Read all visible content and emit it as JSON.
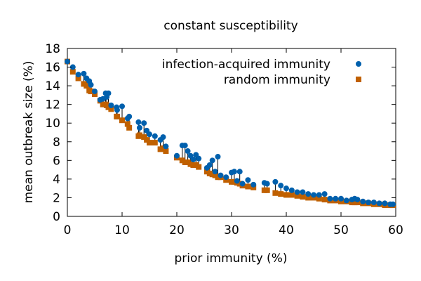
{
  "chart_data": {
    "type": "scatter",
    "title": "constant susceptibility",
    "xlabel": "prior immunity (%)",
    "ylabel": "mean outbreak size (%)",
    "xlim": [
      0,
      60
    ],
    "ylim": [
      0,
      18
    ],
    "xticks": [
      0,
      10,
      20,
      30,
      40,
      50,
      60
    ],
    "yticks": [
      0,
      2,
      4,
      6,
      8,
      10,
      12,
      14,
      16,
      18
    ],
    "legend_position": "top-right",
    "connector_lines": true,
    "series": [
      {
        "name": "infection-acquired immunity",
        "color": "#0060ad",
        "marker": "circle",
        "points": [
          [
            0,
            16.6
          ],
          [
            1,
            16.0
          ],
          [
            2,
            15.2
          ],
          [
            3,
            15.3
          ],
          [
            3.5,
            14.8
          ],
          [
            4,
            14.5
          ],
          [
            4.3,
            14.1
          ],
          [
            5,
            13.4
          ],
          [
            6,
            12.5
          ],
          [
            6.5,
            12.6
          ],
          [
            7,
            13.2
          ],
          [
            7.2,
            12.8
          ],
          [
            7.5,
            13.2
          ],
          [
            8,
            11.9
          ],
          [
            9,
            11.7
          ],
          [
            9.1,
            11.4
          ],
          [
            10,
            11.8
          ],
          [
            11,
            10.5
          ],
          [
            11.3,
            10.7
          ],
          [
            13,
            10.1
          ],
          [
            13.2,
            9.5
          ],
          [
            14,
            10.0
          ],
          [
            14.5,
            9.2
          ],
          [
            15,
            8.8
          ],
          [
            16,
            8.6
          ],
          [
            17,
            8.2
          ],
          [
            17.5,
            8.5
          ],
          [
            18,
            7.5
          ],
          [
            20,
            6.5
          ],
          [
            21,
            7.6
          ],
          [
            21.5,
            7.6
          ],
          [
            22,
            7.0
          ],
          [
            22.5,
            6.5
          ],
          [
            23,
            6.1
          ],
          [
            23.5,
            6.6
          ],
          [
            24,
            6.2
          ],
          [
            25.5,
            5.2
          ],
          [
            26,
            5.5
          ],
          [
            26.5,
            6.0
          ],
          [
            27.5,
            6.4
          ],
          [
            27,
            4.8
          ],
          [
            28,
            4.4
          ],
          [
            29,
            4.2
          ],
          [
            30,
            4.7
          ],
          [
            30.5,
            4.8
          ],
          [
            31,
            3.8
          ],
          [
            31.5,
            4.8
          ],
          [
            32,
            3.5
          ],
          [
            33,
            3.9
          ],
          [
            34,
            3.4
          ],
          [
            36,
            3.6
          ],
          [
            36.5,
            3.5
          ],
          [
            38,
            3.7
          ],
          [
            39,
            3.3
          ],
          [
            40,
            3.0
          ],
          [
            41,
            2.8
          ],
          [
            42,
            2.6
          ],
          [
            43,
            2.6
          ],
          [
            44,
            2.4
          ],
          [
            45,
            2.3
          ],
          [
            46,
            2.3
          ],
          [
            47,
            2.4
          ],
          [
            48,
            1.9
          ],
          [
            49,
            1.9
          ],
          [
            50,
            1.9
          ],
          [
            51,
            1.7
          ],
          [
            52,
            1.8
          ],
          [
            52.5,
            1.9
          ],
          [
            53,
            1.8
          ],
          [
            54,
            1.6
          ],
          [
            55,
            1.5
          ],
          [
            56,
            1.5
          ],
          [
            57,
            1.4
          ],
          [
            58,
            1.4
          ],
          [
            59,
            1.3
          ],
          [
            59.5,
            1.3
          ]
        ]
      },
      {
        "name": "random immunity",
        "color": "#c06000",
        "marker": "square",
        "points": [
          [
            0,
            16.6
          ],
          [
            1,
            15.5
          ],
          [
            2,
            14.8
          ],
          [
            3,
            14.2
          ],
          [
            3.5,
            14.0
          ],
          [
            4,
            13.5
          ],
          [
            4.3,
            13.4
          ],
          [
            5,
            13.1
          ],
          [
            6,
            12.4
          ],
          [
            6.5,
            12.0
          ],
          [
            7,
            12.0
          ],
          [
            7.2,
            11.9
          ],
          [
            7.5,
            11.7
          ],
          [
            8,
            11.5
          ],
          [
            9,
            10.7
          ],
          [
            9.1,
            10.7
          ],
          [
            10,
            10.3
          ],
          [
            11,
            9.9
          ],
          [
            11.3,
            9.5
          ],
          [
            13,
            8.6
          ],
          [
            13.2,
            8.7
          ],
          [
            14,
            8.5
          ],
          [
            14.5,
            8.2
          ],
          [
            15,
            7.9
          ],
          [
            16,
            7.9
          ],
          [
            17,
            7.2
          ],
          [
            17.5,
            7.3
          ],
          [
            18,
            7.0
          ],
          [
            20,
            6.3
          ],
          [
            21,
            6.0
          ],
          [
            21.5,
            5.8
          ],
          [
            22,
            5.8
          ],
          [
            22.5,
            5.6
          ],
          [
            23,
            5.5
          ],
          [
            23.5,
            5.5
          ],
          [
            24,
            5.3
          ],
          [
            25.5,
            4.8
          ],
          [
            26,
            4.6
          ],
          [
            26.5,
            4.5
          ],
          [
            27.5,
            4.2
          ],
          [
            27,
            4.4
          ],
          [
            28,
            4.2
          ],
          [
            29,
            3.9
          ],
          [
            30,
            3.7
          ],
          [
            30.5,
            3.7
          ],
          [
            31,
            3.6
          ],
          [
            31.5,
            3.5
          ],
          [
            32,
            3.3
          ],
          [
            33,
            3.2
          ],
          [
            34,
            3.1
          ],
          [
            36,
            2.8
          ],
          [
            36.5,
            2.8
          ],
          [
            38,
            2.5
          ],
          [
            39,
            2.4
          ],
          [
            40,
            2.3
          ],
          [
            41,
            2.3
          ],
          [
            42,
            2.2
          ],
          [
            43,
            2.1
          ],
          [
            44,
            2.0
          ],
          [
            45,
            2.0
          ],
          [
            46,
            1.9
          ],
          [
            47,
            1.8
          ],
          [
            48,
            1.7
          ],
          [
            49,
            1.7
          ],
          [
            50,
            1.6
          ],
          [
            51,
            1.6
          ],
          [
            52,
            1.5
          ],
          [
            52.5,
            1.5
          ],
          [
            53,
            1.5
          ],
          [
            54,
            1.4
          ],
          [
            55,
            1.4
          ],
          [
            56,
            1.3
          ],
          [
            57,
            1.3
          ],
          [
            58,
            1.2
          ],
          [
            59,
            1.2
          ],
          [
            59.5,
            1.2
          ]
        ]
      }
    ]
  }
}
